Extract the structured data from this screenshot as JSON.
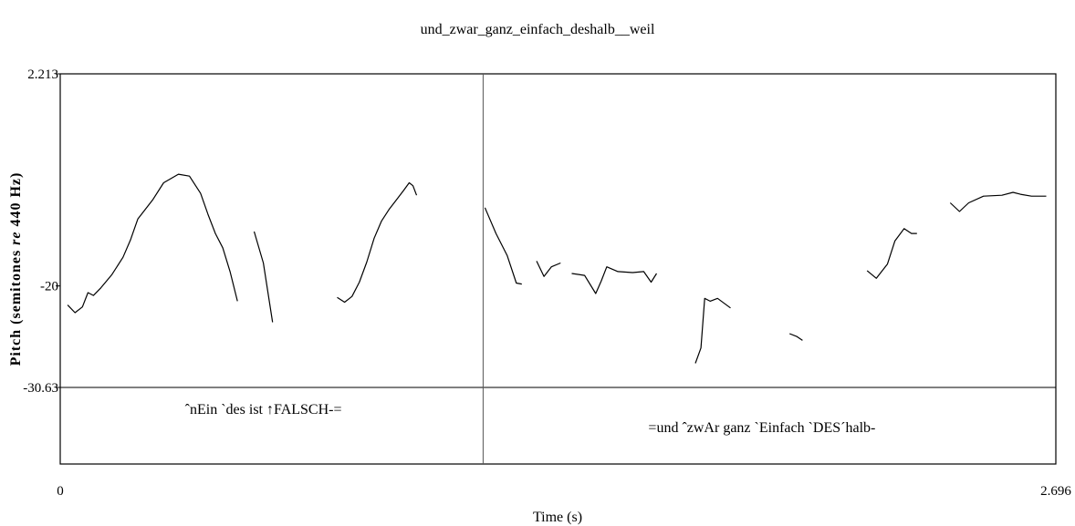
{
  "chart_data": {
    "type": "line",
    "title": "und_zwar_ganz_einfach_deshalb__weil",
    "xlabel": "Time (s)",
    "ylabel_main": "Pitch (semitones ",
    "ylabel_italic": "re",
    "ylabel_tail": " 440 Hz)",
    "xlim": [
      0,
      2.696
    ],
    "ylim": [
      -30.63,
      2.213
    ],
    "x_tick_labels": [
      "0",
      "2.696"
    ],
    "y_tick_labels": [
      "2.213",
      "-20",
      "-30.63"
    ],
    "y_ticks": [
      2.213,
      -20,
      -30.63
    ],
    "grid": false,
    "pitch_segments": [
      [
        [
          0.02,
          -22.0
        ],
        [
          0.04,
          -22.8
        ],
        [
          0.06,
          -22.2
        ],
        [
          0.075,
          -20.7
        ],
        [
          0.09,
          -21.0
        ],
        [
          0.11,
          -20.2
        ],
        [
          0.14,
          -18.8
        ],
        [
          0.17,
          -17.0
        ],
        [
          0.19,
          -15.2
        ],
        [
          0.21,
          -13.0
        ],
        [
          0.25,
          -11.0
        ],
        [
          0.28,
          -9.2
        ],
        [
          0.32,
          -8.3
        ],
        [
          0.35,
          -8.5
        ],
        [
          0.38,
          -10.3
        ],
        [
          0.4,
          -12.5
        ],
        [
          0.42,
          -14.5
        ],
        [
          0.44,
          -16.0
        ],
        [
          0.46,
          -18.5
        ],
        [
          0.48,
          -21.6
        ]
      ],
      [
        [
          0.525,
          -14.3
        ],
        [
          0.55,
          -17.6
        ],
        [
          0.575,
          -23.8
        ]
      ],
      [
        [
          0.75,
          -21.2
        ],
        [
          0.77,
          -21.7
        ],
        [
          0.79,
          -21.1
        ],
        [
          0.81,
          -19.6
        ],
        [
          0.83,
          -17.5
        ],
        [
          0.85,
          -15.0
        ],
        [
          0.87,
          -13.2
        ],
        [
          0.89,
          -12.0
        ],
        [
          0.91,
          -11.0
        ],
        [
          0.93,
          -10.0
        ],
        [
          0.945,
          -9.2
        ],
        [
          0.955,
          -9.5
        ],
        [
          0.965,
          -10.5
        ]
      ],
      [
        [
          1.15,
          -11.8
        ],
        [
          1.18,
          -14.5
        ],
        [
          1.21,
          -16.8
        ],
        [
          1.235,
          -19.7
        ],
        [
          1.25,
          -19.8
        ]
      ],
      [
        [
          1.29,
          -17.4
        ],
        [
          1.31,
          -19.0
        ],
        [
          1.33,
          -18.0
        ],
        [
          1.355,
          -17.6
        ]
      ],
      [
        [
          1.385,
          -18.7
        ],
        [
          1.42,
          -18.9
        ],
        [
          1.45,
          -20.8
        ],
        [
          1.465,
          -19.5
        ],
        [
          1.48,
          -18.0
        ],
        [
          1.51,
          -18.5
        ],
        [
          1.55,
          -18.6
        ],
        [
          1.58,
          -18.5
        ],
        [
          1.6,
          -19.6
        ],
        [
          1.615,
          -18.7
        ]
      ],
      [
        [
          1.72,
          -28.1
        ],
        [
          1.735,
          -26.5
        ],
        [
          1.745,
          -21.3
        ],
        [
          1.76,
          -21.6
        ],
        [
          1.78,
          -21.3
        ],
        [
          1.815,
          -22.3
        ]
      ],
      [
        [
          1.975,
          -25.0
        ],
        [
          1.995,
          -25.3
        ],
        [
          2.01,
          -25.7
        ]
      ],
      [
        [
          2.185,
          -18.4
        ],
        [
          2.21,
          -19.2
        ],
        [
          2.24,
          -17.7
        ],
        [
          2.26,
          -15.3
        ],
        [
          2.285,
          -14.0
        ],
        [
          2.305,
          -14.5
        ],
        [
          2.32,
          -14.5
        ]
      ],
      [
        [
          2.41,
          -11.3
        ],
        [
          2.435,
          -12.2
        ],
        [
          2.46,
          -11.3
        ],
        [
          2.5,
          -10.6
        ],
        [
          2.55,
          -10.5
        ],
        [
          2.58,
          -10.2
        ],
        [
          2.6,
          -10.4
        ],
        [
          2.63,
          -10.6
        ],
        [
          2.67,
          -10.6
        ]
      ]
    ],
    "boundary_time": 1.145,
    "annotations": [
      {
        "text": "ˆnEin `des ist ↑FALSCH-=",
        "x": 0.55
      },
      {
        "text": "=und ˆzwAr ganz `Einfach `DES´halb-",
        "x": 1.9
      }
    ]
  }
}
